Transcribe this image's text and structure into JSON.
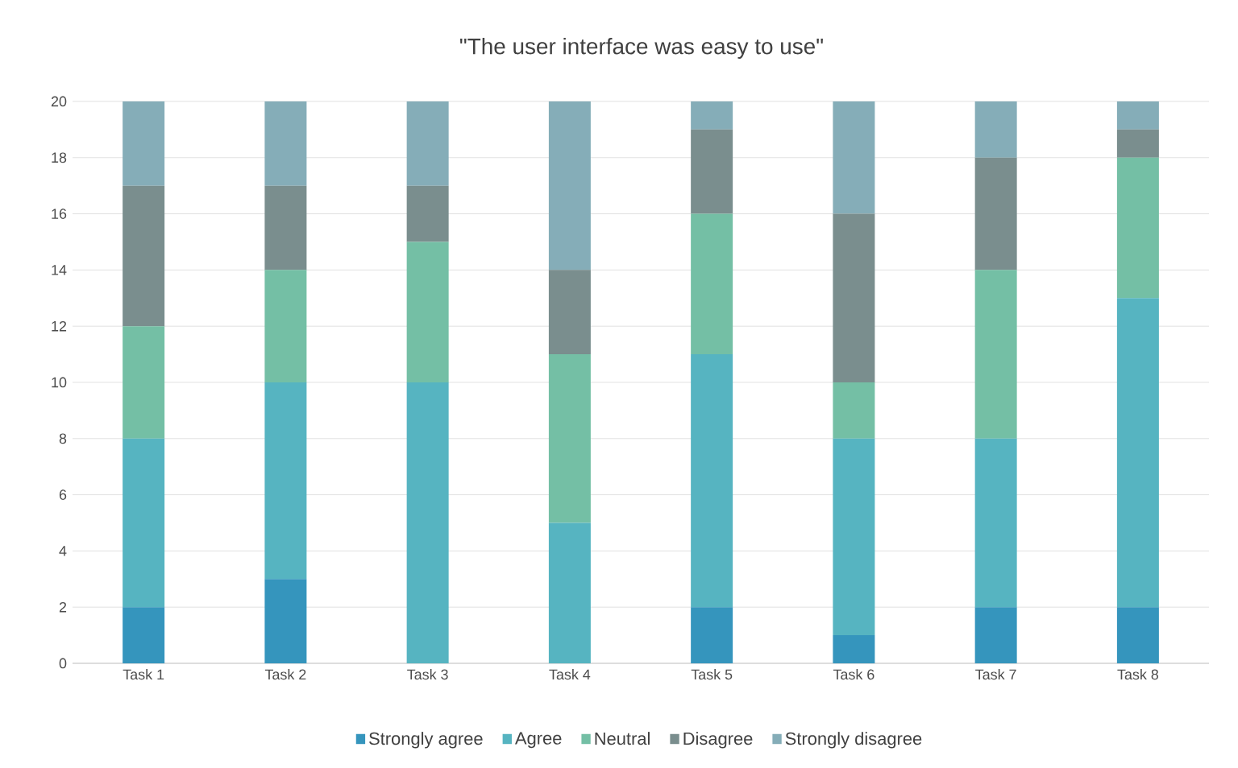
{
  "chart_data": {
    "type": "bar",
    "title": "\"The user interface was easy to use\"",
    "categories": [
      "Task 1",
      "Task 2",
      "Task 3",
      "Task 4",
      "Task 5",
      "Task 6",
      "Task 7",
      "Task 8"
    ],
    "stacked": true,
    "series": [
      {
        "name": "Strongly agree",
        "color": "#3595bd",
        "values": [
          2,
          3,
          0,
          0,
          2,
          1,
          2,
          2
        ]
      },
      {
        "name": "Agree",
        "color": "#56b4c1",
        "values": [
          6,
          7,
          10,
          5,
          9,
          7,
          6,
          11
        ]
      },
      {
        "name": "Neutral",
        "color": "#74bfa5",
        "values": [
          4,
          4,
          5,
          6,
          5,
          2,
          6,
          5
        ]
      },
      {
        "name": "Disagree",
        "color": "#7a8e8e",
        "values": [
          5,
          3,
          2,
          3,
          3,
          6,
          4,
          1
        ]
      },
      {
        "name": "Strongly disagree",
        "color": "#85adb8",
        "values": [
          3,
          3,
          3,
          6,
          1,
          4,
          2,
          1
        ]
      }
    ],
    "ylim": [
      0,
      20
    ],
    "yticks": [
      0,
      2,
      4,
      6,
      8,
      10,
      12,
      14,
      16,
      18,
      20
    ],
    "grid": "y",
    "legend": "bottom"
  }
}
